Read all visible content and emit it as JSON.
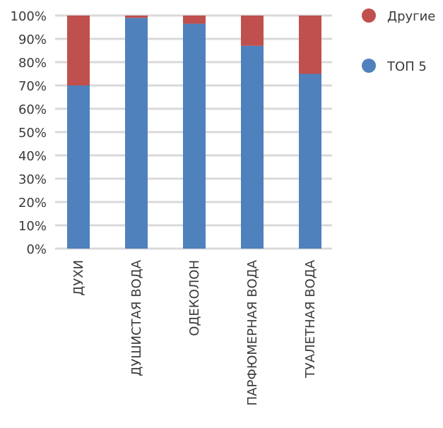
{
  "chart_data": {
    "type": "bar",
    "stacked": true,
    "percent": true,
    "categories": [
      "ДУХИ",
      "ДУШИСТАЯ ВОДА",
      "ОДЕКОЛОН",
      "ПАРФЮМЕРНАЯ ВОДА",
      "ТУАЛЕТНАЯ ВОДА"
    ],
    "series": [
      {
        "name": "ТОП 5",
        "color": "#4f81bd",
        "values": [
          70,
          99,
          96.5,
          87,
          75
        ]
      },
      {
        "name": "Другие",
        "color": "#c0504d",
        "values": [
          30,
          1,
          3.5,
          13,
          25
        ]
      }
    ],
    "ylim": [
      0,
      100
    ],
    "yticks": [
      "0%",
      "10%",
      "20%",
      "30%",
      "40%",
      "50%",
      "60%",
      "70%",
      "80%",
      "90%",
      "100%"
    ],
    "grid": true,
    "legend": {
      "position": "top-right",
      "items": [
        "Другие",
        "ТОП 5"
      ]
    }
  }
}
